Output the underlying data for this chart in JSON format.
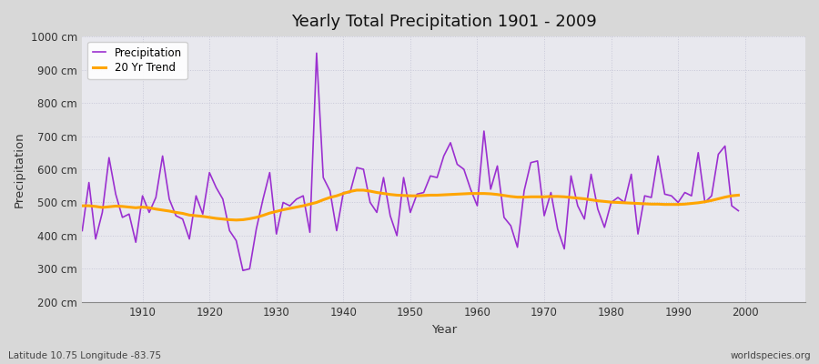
{
  "title": "Yearly Total Precipitation 1901 - 2009",
  "xlabel": "Year",
  "ylabel": "Precipitation",
  "subtitle": "Latitude 10.75 Longitude -83.75",
  "watermark": "worldspecies.org",
  "years": [
    1901,
    1902,
    1903,
    1904,
    1905,
    1906,
    1907,
    1908,
    1909,
    1910,
    1911,
    1912,
    1913,
    1914,
    1915,
    1916,
    1917,
    1918,
    1919,
    1920,
    1921,
    1922,
    1923,
    1924,
    1925,
    1926,
    1927,
    1928,
    1929,
    1930,
    1931,
    1932,
    1933,
    1934,
    1935,
    1936,
    1937,
    1938,
    1939,
    1940,
    1941,
    1942,
    1943,
    1944,
    1945,
    1946,
    1947,
    1948,
    1949,
    1950,
    1951,
    1952,
    1953,
    1954,
    1955,
    1956,
    1957,
    1958,
    1959,
    1960,
    1961,
    1962,
    1963,
    1964,
    1965,
    1966,
    1967,
    1968,
    1969,
    1970,
    1971,
    1972,
    1973,
    1974,
    1975,
    1976,
    1977,
    1978,
    1979,
    1980,
    1981,
    1982,
    1983,
    1984,
    1985,
    1986,
    1987,
    1988,
    1989,
    1990,
    1991,
    1992,
    1993,
    1994,
    1995,
    1996,
    1997,
    1998,
    1999,
    2000,
    2001,
    2002,
    2003,
    2004,
    2005,
    2006,
    2007,
    2008,
    2009
  ],
  "precipitation": [
    415,
    560,
    390,
    470,
    635,
    525,
    455,
    465,
    380,
    520,
    470,
    515,
    640,
    510,
    460,
    450,
    390,
    520,
    465,
    590,
    545,
    510,
    415,
    385,
    295,
    300,
    420,
    510,
    590,
    405,
    500,
    490,
    510,
    520,
    410,
    950,
    575,
    535,
    415,
    530,
    530,
    605,
    600,
    500,
    470,
    575,
    460,
    400,
    575,
    470,
    525,
    530,
    580,
    575,
    640,
    680,
    615,
    600,
    540,
    490,
    715,
    540,
    610,
    455,
    430,
    365,
    535,
    620,
    625,
    460,
    530,
    420,
    360,
    580,
    490,
    450,
    585,
    480,
    425,
    500,
    515,
    500,
    585,
    405,
    520,
    515,
    640,
    525,
    520,
    500,
    530,
    520,
    650,
    500,
    520,
    645,
    670,
    490,
    475
  ],
  "trend": [
    490,
    490,
    488,
    485,
    487,
    489,
    488,
    486,
    484,
    486,
    484,
    480,
    477,
    474,
    470,
    467,
    462,
    460,
    458,
    455,
    452,
    450,
    448,
    447,
    448,
    451,
    455,
    461,
    468,
    473,
    478,
    482,
    486,
    490,
    495,
    500,
    508,
    515,
    520,
    527,
    533,
    537,
    537,
    534,
    530,
    527,
    524,
    522,
    521,
    520,
    520,
    521,
    522,
    522,
    523,
    524,
    525,
    526,
    527,
    527,
    527,
    526,
    524,
    521,
    518,
    516,
    516,
    517,
    517,
    517,
    518,
    518,
    517,
    515,
    513,
    511,
    508,
    505,
    503,
    501,
    500,
    499,
    498,
    497,
    496,
    495,
    495,
    494,
    494,
    494,
    495,
    497,
    499,
    502,
    506,
    511,
    516,
    520,
    522
  ],
  "precip_color": "#9b30d0",
  "trend_color": "#ffa500",
  "outer_bg_color": "#d8d8d8",
  "plot_bg_color": "#e8e8ee",
  "grid_color": "#c8c8d8",
  "ylim": [
    200,
    1000
  ],
  "xlim": [
    1901,
    2009
  ],
  "yticks": [
    200,
    300,
    400,
    500,
    600,
    700,
    800,
    900,
    1000
  ],
  "ytick_labels": [
    "200 cm",
    "300 cm",
    "400 cm",
    "500 cm",
    "600 cm",
    "700 cm",
    "800 cm",
    "900 cm",
    "1000 cm"
  ],
  "xticks": [
    1910,
    1920,
    1930,
    1940,
    1950,
    1960,
    1970,
    1980,
    1990,
    2000
  ]
}
